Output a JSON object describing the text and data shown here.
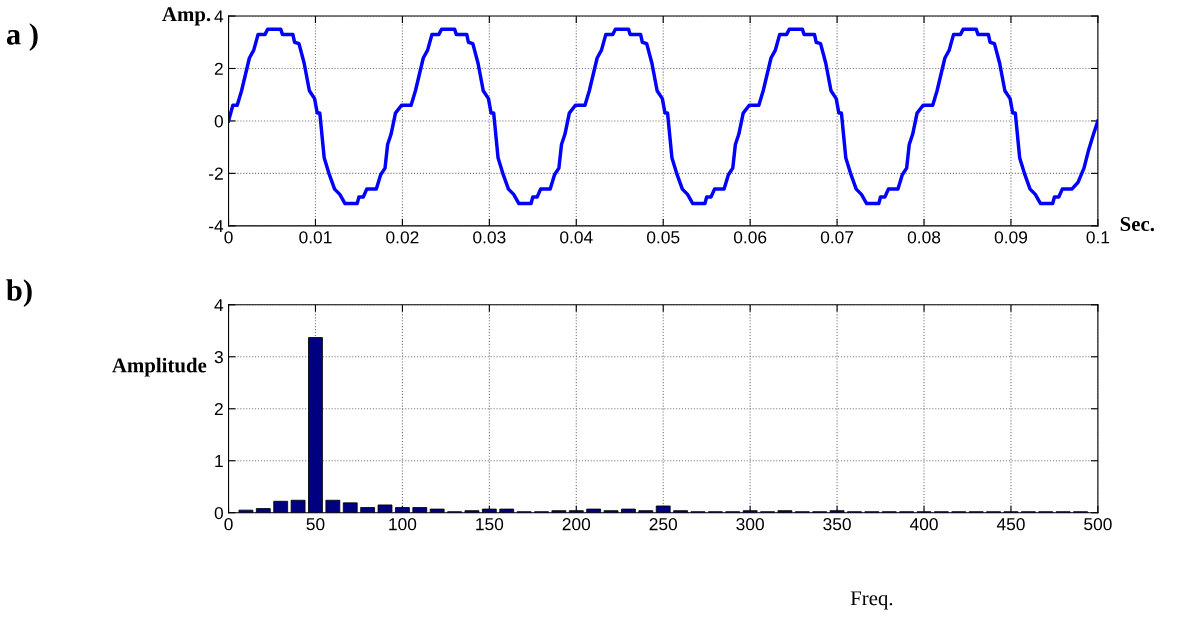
{
  "chart_data": [
    {
      "type": "line",
      "xlabel": "Sec.",
      "ylabel": "Amp.",
      "annotations": [
        "a )"
      ],
      "x": [
        0,
        0.0005,
        0.001,
        0.0015,
        0.0024,
        0.0029,
        0.0034,
        0.0042,
        0.0045,
        0.006,
        0.0062,
        0.0074,
        0.0076,
        0.0081,
        0.0087,
        0.0093,
        0.0099,
        0.0102,
        0.0105,
        0.011,
        0.0116,
        0.0122,
        0.0128,
        0.0134,
        0.0148,
        0.015,
        0.0155,
        0.0159,
        0.017,
        0.0175,
        0.018,
        0.0183,
        0.0187,
        0.0192,
        0.0199,
        0.0205,
        0.021,
        0.0215,
        0.0224,
        0.0229,
        0.0234,
        0.0242,
        0.0245,
        0.026,
        0.0262,
        0.0274,
        0.0276,
        0.0281,
        0.0287,
        0.0293,
        0.0299,
        0.0302,
        0.0305,
        0.031,
        0.0316,
        0.0322,
        0.0328,
        0.0334,
        0.0348,
        0.035,
        0.0355,
        0.0359,
        0.037,
        0.0375,
        0.038,
        0.0383,
        0.0387,
        0.0392,
        0.0399,
        0.0405,
        0.041,
        0.0415,
        0.0424,
        0.0429,
        0.0434,
        0.0442,
        0.0445,
        0.046,
        0.0462,
        0.0474,
        0.0476,
        0.0481,
        0.0487,
        0.0493,
        0.0499,
        0.0502,
        0.0505,
        0.051,
        0.0516,
        0.0522,
        0.0528,
        0.0534,
        0.0548,
        0.055,
        0.0555,
        0.0559,
        0.057,
        0.0575,
        0.058,
        0.0583,
        0.0587,
        0.0592,
        0.0599,
        0.0605,
        0.061,
        0.0615,
        0.0624,
        0.0629,
        0.0634,
        0.0642,
        0.0645,
        0.066,
        0.0662,
        0.0674,
        0.0676,
        0.0681,
        0.0687,
        0.0693,
        0.0699,
        0.0702,
        0.0705,
        0.071,
        0.0716,
        0.0722,
        0.0728,
        0.0734,
        0.0748,
        0.075,
        0.0755,
        0.0759,
        0.077,
        0.0775,
        0.078,
        0.0783,
        0.0787,
        0.0792,
        0.0799,
        0.0805,
        0.081,
        0.0815,
        0.0824,
        0.0829,
        0.0834,
        0.0842,
        0.0845,
        0.086,
        0.0862,
        0.0874,
        0.0876,
        0.0881,
        0.0887,
        0.0893,
        0.0899,
        0.0902,
        0.0905,
        0.091,
        0.0916,
        0.0922,
        0.0928,
        0.0934,
        0.0948,
        0.095,
        0.0955,
        0.0959,
        0.097,
        0.0977,
        0.0984,
        0.0989,
        0.0995,
        0.1
      ],
      "series": [
        {
          "color": "#0000ff",
          "values": [
            0,
            0.6,
            0.6,
            1.15,
            2.4,
            2.7,
            3.3,
            3.3,
            3.5,
            3.5,
            3.3,
            3.3,
            3,
            2.95,
            2.2,
            1.15,
            0.85,
            0.3,
            0.3,
            -1.4,
            -2.05,
            -2.6,
            -2.8,
            -3.15,
            -3.15,
            -2.9,
            -2.9,
            -2.6,
            -2.6,
            -2.05,
            -1.8,
            -0.9,
            -0.5,
            0.3,
            0.6,
            0.6,
            0.6,
            1.15,
            2.4,
            2.7,
            3.3,
            3.3,
            3.5,
            3.5,
            3.3,
            3.3,
            3,
            2.95,
            2.2,
            1.15,
            0.85,
            0.3,
            0.3,
            -1.4,
            -2.05,
            -2.6,
            -2.8,
            -3.15,
            -3.15,
            -2.9,
            -2.9,
            -2.6,
            -2.6,
            -2.05,
            -1.8,
            -0.9,
            -0.5,
            0.3,
            0.6,
            0.6,
            0.6,
            1.15,
            2.4,
            2.7,
            3.3,
            3.3,
            3.5,
            3.5,
            3.3,
            3.3,
            3,
            2.95,
            2.2,
            1.15,
            0.85,
            0.3,
            0.3,
            -1.4,
            -2.05,
            -2.6,
            -2.8,
            -3.15,
            -3.15,
            -2.9,
            -2.9,
            -2.6,
            -2.6,
            -2.05,
            -1.8,
            -0.9,
            -0.5,
            0.3,
            0.6,
            0.6,
            0.6,
            1.15,
            2.4,
            2.7,
            3.3,
            3.3,
            3.5,
            3.5,
            3.3,
            3.3,
            3,
            2.95,
            2.2,
            1.15,
            0.85,
            0.3,
            0.3,
            -1.4,
            -2.05,
            -2.6,
            -2.8,
            -3.15,
            -3.15,
            -2.9,
            -2.9,
            -2.6,
            -2.6,
            -2.05,
            -1.8,
            -0.9,
            -0.5,
            0.3,
            0.6,
            0.6,
            0.6,
            1.15,
            2.4,
            2.7,
            3.3,
            3.3,
            3.5,
            3.5,
            3.3,
            3.3,
            3,
            2.95,
            2.2,
            1.15,
            0.85,
            0.3,
            0.3,
            -1.4,
            -2.05,
            -2.6,
            -2.8,
            -3.15,
            -3.15,
            -2.9,
            -2.9,
            -2.6,
            -2.6,
            -2.35,
            -1.8,
            -1.15,
            -0.5,
            0
          ]
        }
      ],
      "xlim": [
        0,
        0.1
      ],
      "xticks": [
        0,
        0.01,
        0.02,
        0.03,
        0.04,
        0.05,
        0.06,
        0.07,
        0.08,
        0.09,
        0.1
      ],
      "ylim": [
        -4,
        4
      ],
      "yticks": [
        -4,
        -2,
        0,
        2,
        4
      ],
      "grid": true,
      "line_style": "solid",
      "marker": "none"
    },
    {
      "type": "bar",
      "xlabel": "Freq.",
      "ylabel": "Amplitude",
      "annotations": [
        "b)"
      ],
      "x": [
        10,
        20,
        30,
        40,
        50,
        60,
        70,
        80,
        90,
        100,
        110,
        120,
        130,
        140,
        150,
        160,
        170,
        180,
        190,
        200,
        210,
        220,
        230,
        240,
        250,
        260,
        270,
        280,
        290,
        300,
        310,
        320,
        330,
        340,
        350,
        360,
        370,
        380,
        390,
        400,
        410,
        420,
        430,
        440,
        450,
        460,
        470,
        480,
        490
      ],
      "series": [
        {
          "color": "#000080",
          "values": [
            0.05,
            0.08,
            0.22,
            0.24,
            3.37,
            0.24,
            0.19,
            0.1,
            0.15,
            0.1,
            0.1,
            0.07,
            0.02,
            0.04,
            0.07,
            0.07,
            0.02,
            0.02,
            0.04,
            0.04,
            0.07,
            0.04,
            0.07,
            0.04,
            0.13,
            0.04,
            0.02,
            0.02,
            0.02,
            0.04,
            0.02,
            0.04,
            0.02,
            0.02,
            0.04,
            0.02,
            0.02,
            0.02,
            0.02,
            0.02,
            0.02,
            0.02,
            0.02,
            0.02,
            0.02,
            0.02,
            0.02,
            0.02,
            0.02
          ]
        }
      ],
      "xlim": [
        0,
        500
      ],
      "xticks": [
        0,
        50,
        100,
        150,
        200,
        250,
        300,
        350,
        400,
        450,
        500
      ],
      "ylim": [
        0,
        4
      ],
      "yticks": [
        0,
        1,
        2,
        3,
        4
      ],
      "grid": true
    }
  ]
}
